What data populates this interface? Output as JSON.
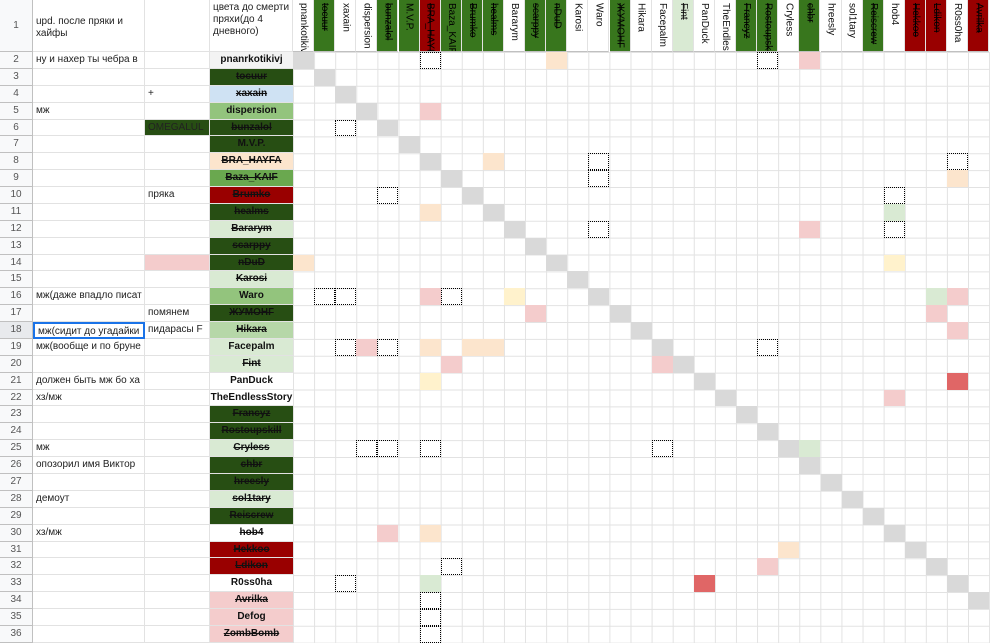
{
  "header": {
    "row_number": "1",
    "note": "upd. после пряки и хайфы",
    "name_header": "цвета до смерти пряхи(до 4 дневного)"
  },
  "columns": [
    {
      "name": "pnankotikivj",
      "color": "#ffffff",
      "struck": false
    },
    {
      "name": "tocuur",
      "color": "#38761d",
      "struck": true
    },
    {
      "name": "xaxain",
      "color": "#ffffff",
      "struck": false
    },
    {
      "name": "dispersion",
      "color": "#ffffff",
      "struck": false
    },
    {
      "name": "bunzalol",
      "color": "#38761d",
      "struck": true
    },
    {
      "name": "M.V.P.",
      "color": "#38761d",
      "struck": false
    },
    {
      "name": "BRA_HAYFA",
      "color": "#990000",
      "struck": true
    },
    {
      "name": "Baza_KAIF",
      "color": "#38761d",
      "struck": false
    },
    {
      "name": "Brumko",
      "color": "#38761d",
      "struck": true
    },
    {
      "name": "healms",
      "color": "#38761d",
      "struck": true
    },
    {
      "name": "Bararym",
      "color": "#ffffff",
      "struck": false
    },
    {
      "name": "scarppy",
      "color": "#38761d",
      "struck": true
    },
    {
      "name": "nDuD",
      "color": "#38761d",
      "struck": true
    },
    {
      "name": "Karosi",
      "color": "#ffffff",
      "struck": false
    },
    {
      "name": "Waro",
      "color": "#ffffff",
      "struck": false
    },
    {
      "name": "ЖУМОНГ",
      "color": "#38761d",
      "struck": true
    },
    {
      "name": "Hikara",
      "color": "#ffffff",
      "struck": false
    },
    {
      "name": "Facepalm",
      "color": "#ffffff",
      "struck": false
    },
    {
      "name": "Fint",
      "color": "#d9ead3",
      "struck": true
    },
    {
      "name": "PanDuck",
      "color": "#ffffff",
      "struck": false
    },
    {
      "name": "TheEndless",
      "color": "#ffffff",
      "struck": false
    },
    {
      "name": "Francyz",
      "color": "#38761d",
      "struck": true
    },
    {
      "name": "Rostoupskill",
      "color": "#38761d",
      "struck": true
    },
    {
      "name": "Cryless",
      "color": "#ffffff",
      "struck": false
    },
    {
      "name": "chbr",
      "color": "#38761d",
      "struck": true
    },
    {
      "name": "hreesly",
      "color": "#ffffff",
      "struck": false
    },
    {
      "name": "sol1tary",
      "color": "#ffffff",
      "struck": false
    },
    {
      "name": "Reiscrew",
      "color": "#38761d",
      "struck": true
    },
    {
      "name": "hob4",
      "color": "#ffffff",
      "struck": false
    },
    {
      "name": "Hekkoo",
      "color": "#990000",
      "struck": true
    },
    {
      "name": "Ldikon",
      "color": "#990000",
      "struck": true
    },
    {
      "name": "R0ss0ha",
      "color": "#ffffff",
      "struck": false
    },
    {
      "name": "Avrilka",
      "color": "#990000",
      "struck": true
    }
  ],
  "rows": [
    {
      "number": "2",
      "note": "ну и нахер ты чебра в",
      "name": "pnanrkotikivj",
      "color": "#f3f3f3",
      "struck": false
    },
    {
      "number": "3",
      "name": "tocuur",
      "color": "#274e13",
      "struck": true
    },
    {
      "number": "4",
      "comment": "+",
      "name": "xaxain",
      "color": "#cfe2f3",
      "struck": true
    },
    {
      "number": "5",
      "note": "мж",
      "name": "dispersion",
      "color": "#93c47d",
      "struck": false
    },
    {
      "number": "6",
      "comment": "OMEGALUL",
      "comment_color": "#274e13",
      "name": "bunzalol",
      "color": "#274e13",
      "struck": true
    },
    {
      "number": "7",
      "name": "M.V.P.",
      "color": "#274e13",
      "struck": false
    },
    {
      "number": "8",
      "name": "BRA_HAYFA",
      "color": "#fce5cd",
      "struck": true
    },
    {
      "number": "9",
      "name": "Baza_KAIF",
      "color": "#6aa84f",
      "struck": true
    },
    {
      "number": "10",
      "comment": "пряка",
      "name": "Brumko",
      "color": "#990000",
      "struck": true
    },
    {
      "number": "11",
      "name": "healms",
      "color": "#274e13",
      "struck": true
    },
    {
      "number": "12",
      "name": "Bararym",
      "color": "#d9ead3",
      "struck": true
    },
    {
      "number": "13",
      "name": "scarppy",
      "color": "#274e13",
      "struck": true
    },
    {
      "number": "14",
      "comment_color": "#f4cccc",
      "name": "nDuD",
      "color": "#274e13",
      "struck": true
    },
    {
      "number": "15",
      "name": "Karosi",
      "color": "#d9ead3",
      "struck": true
    },
    {
      "number": "16",
      "note": "мж(даже впадло писат",
      "name": "Waro",
      "color": "#93c47d",
      "struck": false
    },
    {
      "number": "17",
      "comment": "помянем",
      "name": "ЖУМОНГ",
      "color": "#274e13",
      "struck": true
    },
    {
      "number": "18",
      "note": "мж(сидит до угадайки",
      "comment": "пидарасы F",
      "name": "Hikara",
      "color": "#b6d7a8",
      "struck": true
    },
    {
      "number": "19",
      "note": "мж(вообще и по бруне",
      "name": "Facepalm",
      "color": "#d9ead3",
      "struck": false
    },
    {
      "number": "20",
      "name": "Fint",
      "color": "#d9ead3",
      "struck": true
    },
    {
      "number": "21",
      "note": "должен быть мж бо ха",
      "name": "PanDuck",
      "color": "#ffffff",
      "struck": false
    },
    {
      "number": "22",
      "note": "хз/мж",
      "name": "TheEndlessStory",
      "color": "#ffffff",
      "struck": false
    },
    {
      "number": "23",
      "name": "Francyz",
      "color": "#274e13",
      "struck": true
    },
    {
      "number": "24",
      "name": "Rostoupskill",
      "color": "#274e13",
      "struck": true
    },
    {
      "number": "25",
      "note": "мж",
      "name": "Cryless",
      "color": "#d9ead3",
      "struck": true
    },
    {
      "number": "26",
      "note": "опозорил имя Виктор",
      "name": "chbr",
      "color": "#274e13",
      "struck": true
    },
    {
      "number": "27",
      "name": "hreesly",
      "color": "#274e13",
      "struck": true
    },
    {
      "number": "28",
      "note": "демоут",
      "name": "sol1tary",
      "color": "#d9ead3",
      "struck": true
    },
    {
      "number": "29",
      "name": "Reiscrew",
      "color": "#274e13",
      "struck": true
    },
    {
      "number": "30",
      "note": "хз/мж",
      "name": "hob4",
      "color": "#ffffff",
      "struck": true
    },
    {
      "number": "31",
      "name": "Hekkoo",
      "color": "#990000",
      "struck": true
    },
    {
      "number": "32",
      "name": "Ldikon",
      "color": "#990000",
      "struck": true
    },
    {
      "number": "33",
      "name": "R0ss0ha",
      "color": "#ffffff",
      "struck": false
    },
    {
      "number": "34",
      "name": "Avrilka",
      "color": "#f4cccc",
      "struck": true
    },
    {
      "number": "35",
      "name": "Defog",
      "color": "#f4cccc",
      "struck": false
    },
    {
      "number": "36",
      "name": "ZombBomb",
      "color": "#f4cccc",
      "struck": true
    }
  ]
}
